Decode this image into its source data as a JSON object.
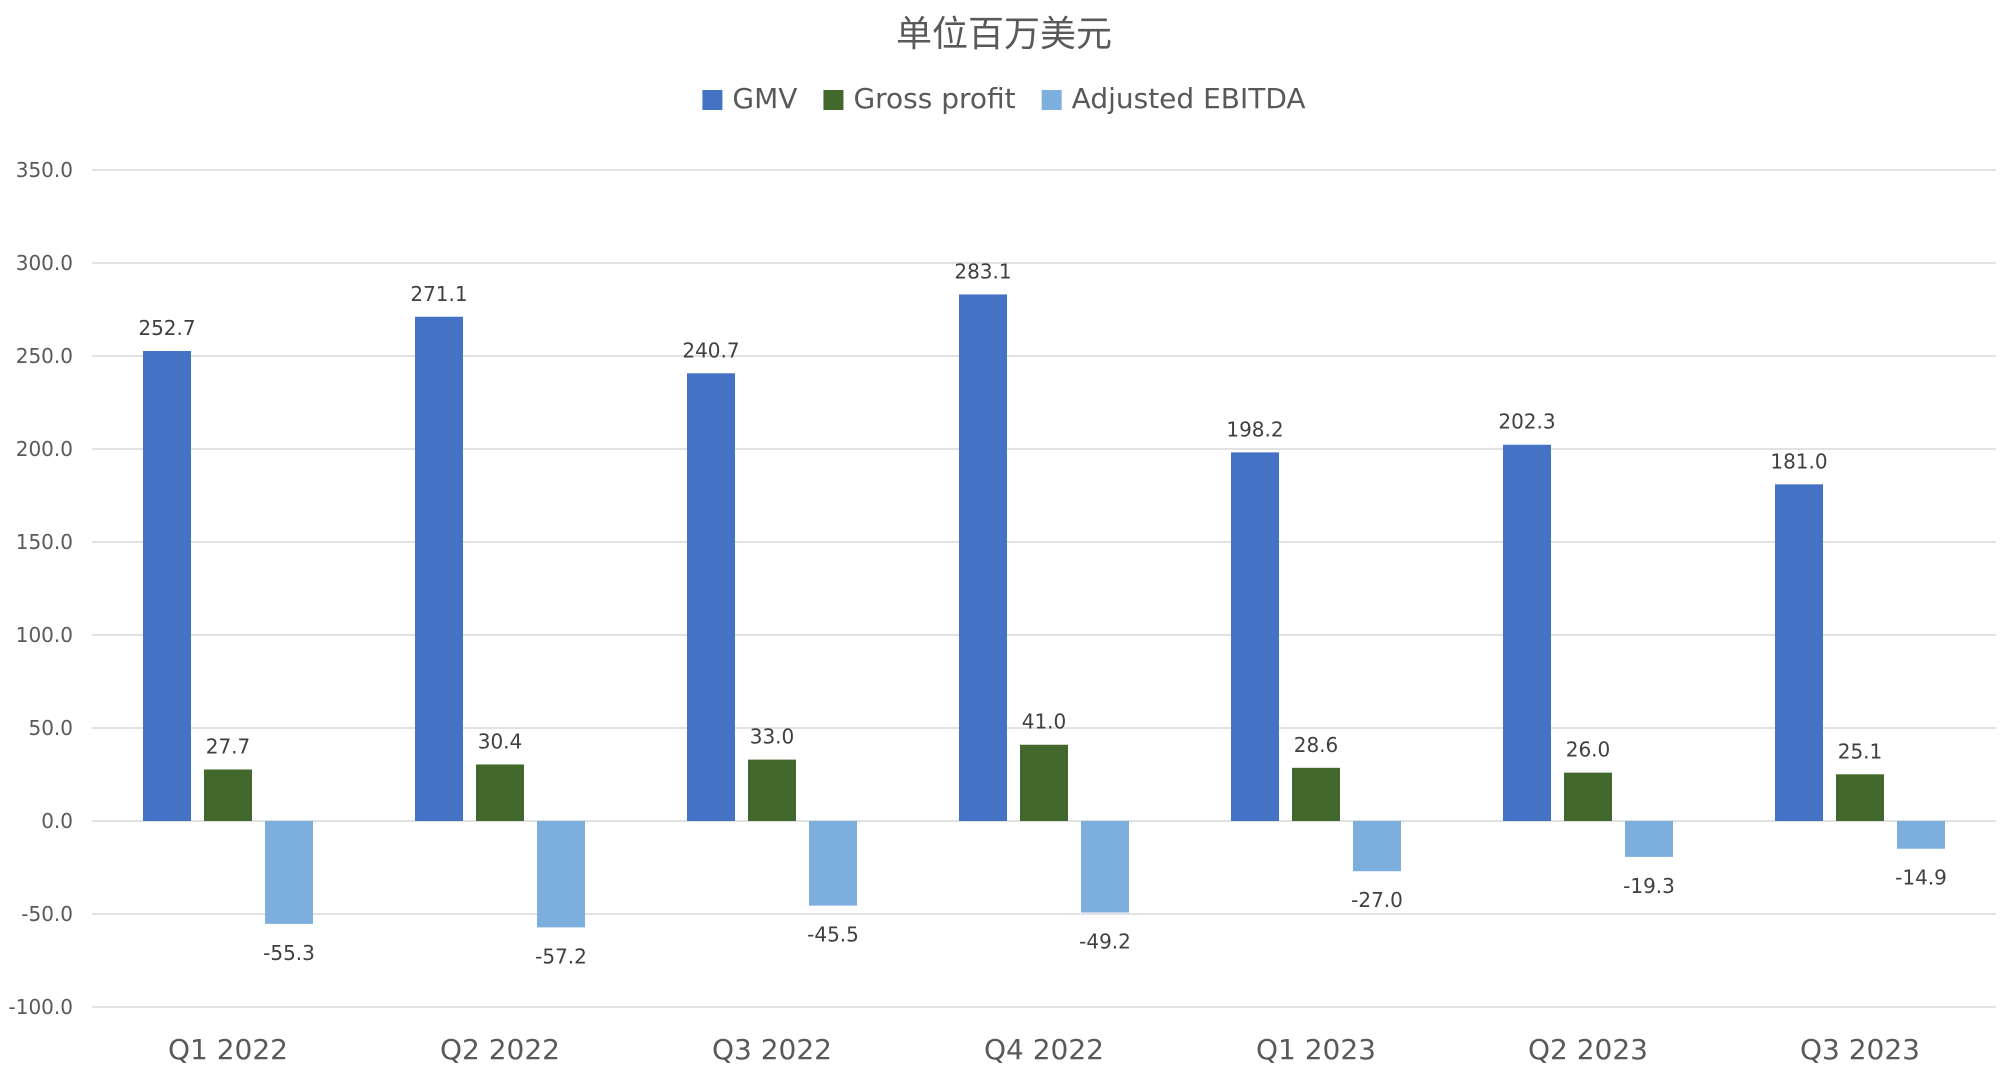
{
  "chart_data": {
    "type": "bar",
    "title": "单位百万美元",
    "xlabel": "",
    "ylabel": "",
    "ylim": [
      -100,
      350
    ],
    "yticks": [
      -100,
      -50,
      0,
      50,
      100,
      150,
      200,
      250,
      300,
      350
    ],
    "ytick_labels": [
      "-100.0",
      "-50.0",
      "0.0",
      "50.0",
      "100.0",
      "150.0",
      "200.0",
      "250.0",
      "300.0",
      "350.0"
    ],
    "grid": true,
    "legend_position": "top",
    "categories": [
      "Q1 2022",
      "Q2 2022",
      "Q3 2022",
      "Q4 2022",
      "Q1 2023",
      "Q2 2023",
      "Q3 2023"
    ],
    "series": [
      {
        "name": "GMV",
        "color": "#4472c4",
        "values": [
          252.7,
          271.1,
          240.7,
          283.1,
          198.2,
          202.3,
          181.0
        ],
        "labels": [
          "252.7",
          "271.1",
          "240.7",
          "283.1",
          "198.2",
          "202.3",
          "181.0"
        ]
      },
      {
        "name": "Gross profit",
        "color": "#43682b",
        "values": [
          27.7,
          30.4,
          33.0,
          41.0,
          28.6,
          26.0,
          25.1
        ],
        "labels": [
          "27.7",
          "30.4",
          "33.0",
          "41.0",
          "28.6",
          "26.0",
          "25.1"
        ]
      },
      {
        "name": "Adjusted EBITDA",
        "color": "#7cafde",
        "values": [
          -55.3,
          -57.2,
          -45.5,
          -49.2,
          -27.0,
          -19.3,
          -14.9
        ],
        "labels": [
          "-55.3",
          "-57.2",
          "-45.5",
          "-49.2",
          "-27.0",
          "-19.3",
          "-14.9"
        ]
      }
    ]
  }
}
